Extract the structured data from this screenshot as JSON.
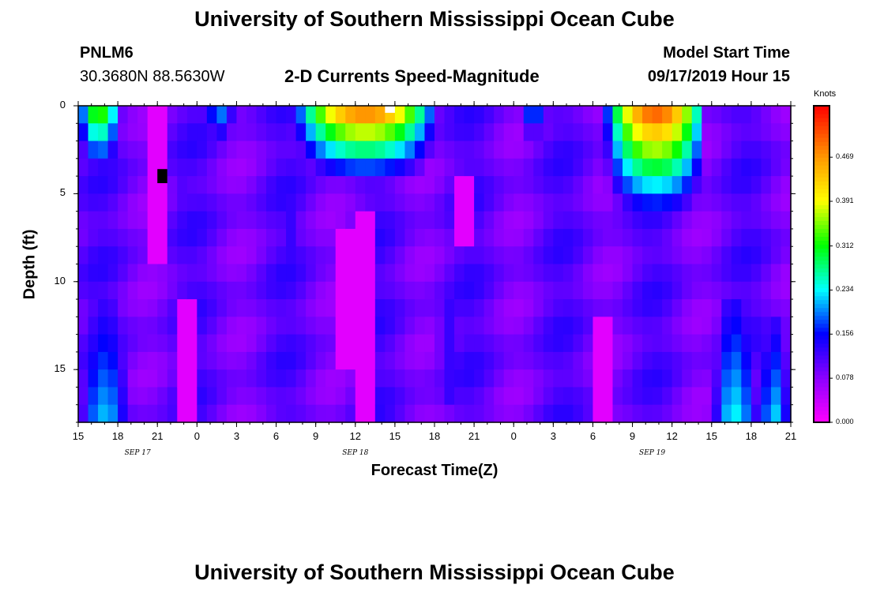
{
  "title_top": "University of Southern Mississippi Ocean Cube",
  "title_bottom": "University of Southern Mississippi Ocean Cube",
  "station": {
    "id": "PNLM6",
    "coords": "30.3680N 88.5630W"
  },
  "model": {
    "label": "Model Start Time",
    "value": "09/17/2019 Hour 15"
  },
  "chart_data": {
    "type": "heatmap",
    "title": "2-D Currents Speed-Magnitude",
    "xlabel": "Forecast Time(Z)",
    "ylabel": "Depth (ft)",
    "xlim": [
      0,
      54
    ],
    "ylim": [
      0,
      18
    ],
    "y_ticks": [
      0,
      5,
      10,
      15
    ],
    "y_tick_labels": [
      "0",
      "5",
      "10",
      "15"
    ],
    "x_ticks": [
      0,
      3,
      6,
      9,
      12,
      15,
      18,
      21,
      24,
      27,
      30,
      33,
      36,
      39,
      42,
      45,
      48,
      51,
      54
    ],
    "x_tick_labels": [
      "15",
      "18",
      "21",
      "0",
      "3",
      "6",
      "9",
      "12",
      "15",
      "18",
      "21",
      "0",
      "3",
      "6",
      "9",
      "12",
      "15",
      "18",
      "21"
    ],
    "date_labels": [
      {
        "x": 4.5,
        "label": "SEP 17"
      },
      {
        "x": 21,
        "label": "SEP 18"
      },
      {
        "x": 43.5,
        "label": "SEP 19"
      }
    ],
    "colorbar": {
      "label": "Knots",
      "min": 0.0,
      "max": 0.56,
      "ticks": [
        0.0,
        0.078,
        0.156,
        0.234,
        0.312,
        0.391,
        0.469
      ],
      "tick_labels": [
        "0.000",
        "0.078",
        "0.156",
        "0.234",
        "0.312",
        "0.391",
        "0.469"
      ]
    },
    "time_step_hours": 0.75,
    "depth_step_ft": 1,
    "features": [
      {
        "t0": 0,
        "t1": 3.2,
        "d0": 0,
        "d1": 4,
        "peak": 0.36,
        "shape": "top"
      },
      {
        "t0": 9.5,
        "t1": 12,
        "d0": 0,
        "d1": 3,
        "peak": 0.22,
        "shape": "top"
      },
      {
        "t0": 16.5,
        "t1": 27,
        "d0": 0,
        "d1": 4,
        "peak": 0.52,
        "shape": "top"
      },
      {
        "t0": 33.5,
        "t1": 35.5,
        "d0": 0,
        "d1": 2.5,
        "peak": 0.22,
        "shape": "top"
      },
      {
        "t0": 40,
        "t1": 47.5,
        "d0": 0,
        "d1": 6,
        "peak": 0.53,
        "shape": "top"
      },
      {
        "t0": 0,
        "t1": 4,
        "d0": 11,
        "d1": 18,
        "peak": 0.22,
        "shape": "bottom"
      },
      {
        "t0": 48,
        "t1": 51.5,
        "d0": 11,
        "d1": 18,
        "peak": 0.24,
        "shape": "bottom"
      },
      {
        "t0": 51.5,
        "t1": 54,
        "d0": 12,
        "d1": 17.5,
        "peak": 0.22,
        "shape": "bottom"
      },
      {
        "t0": 15,
        "t1": 17,
        "d0": 4,
        "d1": 9.5,
        "peak": 0.15,
        "shape": "band"
      },
      {
        "t0": 27,
        "t1": 29,
        "d0": 11.5,
        "d1": 17,
        "peak": 0.15,
        "shape": "band"
      },
      {
        "t0": 7.5,
        "t1": 8.2,
        "d0": 3.5,
        "d1": 8.5,
        "peak": 0.13,
        "shape": "band"
      }
    ],
    "low_streaks": [
      {
        "t": 6,
        "d0": 0,
        "d1": 8.5
      },
      {
        "t": 8,
        "d0": 11,
        "d1": 18
      },
      {
        "t": 29.5,
        "d0": 4,
        "d1": 8
      },
      {
        "t": 22,
        "d0": 6,
        "d1": 18
      },
      {
        "t": 20,
        "d0": 7,
        "d1": 15
      },
      {
        "t": 40,
        "d0": 12,
        "d1": 18
      }
    ],
    "missing_cells": [
      {
        "t": 6.0,
        "d0": 3.6,
        "d1": 4.4,
        "color": "#000000"
      },
      {
        "t": 23.25,
        "d0": 0,
        "d1": 0.4,
        "color": "#ffffff"
      }
    ]
  }
}
